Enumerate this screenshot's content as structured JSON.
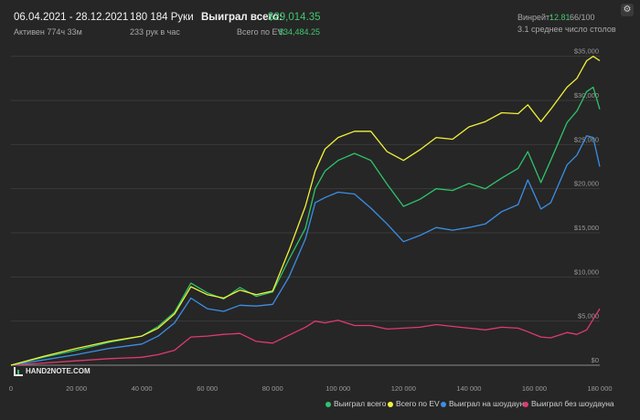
{
  "header": {
    "date_range": "06.04.2021 - 28.12.2021",
    "active_time": "Активен 774ч 33м",
    "hands": "180 184 Руки",
    "hands_per_hour": "233 рук в час",
    "won_label": "Выиграл всего:",
    "won_value": "$29,014.35",
    "ev_label": "Всего по EV:",
    "ev_value": "$34,484.25",
    "winrate_label": "Винрейт:",
    "winrate_value": "12.81",
    "winrate_extra": "66/100",
    "tables_avg": "3.1 среднее число столов",
    "settings_icon": "gear-icon"
  },
  "logo": {
    "text": "HAND2NOTE.COM",
    "icon": "hand2note-logo"
  },
  "colors": {
    "won_total": "#2ec46a",
    "ev_total": "#f2f23a",
    "showdown": "#3b8fe6",
    "non_showdown": "#e03a6e",
    "accent": "#3ec76f"
  },
  "chart_data": {
    "type": "line",
    "title": "",
    "xlabel": "",
    "ylabel": "",
    "xlim": [
      0,
      180000
    ],
    "ylim": [
      0,
      36000
    ],
    "x_ticks": [
      0,
      20000,
      40000,
      60000,
      80000,
      100000,
      120000,
      140000,
      160000,
      180000
    ],
    "x_tick_labels": [
      "0",
      "20 000",
      "40 000",
      "60 000",
      "80 000",
      "100 000",
      "120 000",
      "140 000",
      "160 000",
      "180 000"
    ],
    "y_ticks": [
      0,
      5000,
      10000,
      15000,
      20000,
      25000,
      30000,
      35000
    ],
    "y_tick_labels": [
      "$0",
      "$5,000",
      "$10,000",
      "$15,000",
      "$20,000",
      "$25,000",
      "$30,000",
      "$35,000"
    ],
    "grid": "horizontal",
    "legend": "bottom-right",
    "x": [
      0,
      10000,
      20000,
      30000,
      40000,
      45000,
      50000,
      55000,
      60000,
      65000,
      70000,
      75000,
      80000,
      85000,
      90000,
      93000,
      96000,
      100000,
      105000,
      110000,
      115000,
      120000,
      125000,
      130000,
      135000,
      140000,
      145000,
      150000,
      155000,
      158000,
      162000,
      165000,
      170000,
      173000,
      176000,
      178000,
      180000
    ],
    "series": [
      {
        "name": "Выиграл всего",
        "values": [
          0,
          900,
          1700,
          2600,
          3300,
          4400,
          6000,
          9300,
          8200,
          7500,
          8800,
          7800,
          8300,
          12000,
          15500,
          20000,
          22000,
          23200,
          24000,
          23200,
          20500,
          18000,
          18800,
          20000,
          19800,
          20600,
          20000,
          21200,
          22300,
          24200,
          20700,
          23200,
          27500,
          28800,
          31000,
          31500,
          29000
        ]
      },
      {
        "name": "Всего по EV",
        "values": [
          0,
          1000,
          1900,
          2700,
          3300,
          4200,
          5800,
          8900,
          8000,
          7600,
          8500,
          8000,
          8400,
          13000,
          18000,
          22000,
          24500,
          25800,
          26500,
          26500,
          24200,
          23200,
          24400,
          25800,
          25600,
          27000,
          27600,
          28600,
          28500,
          29500,
          27600,
          29000,
          31500,
          32500,
          34500,
          35000,
          34500
        ]
      },
      {
        "name": "Выиграл на шоудауне",
        "values": [
          0,
          600,
          1200,
          1900,
          2400,
          3300,
          4800,
          7600,
          6400,
          6100,
          6800,
          6700,
          6900,
          10000,
          14300,
          18400,
          19000,
          19600,
          19400,
          17800,
          16000,
          14000,
          14700,
          15600,
          15300,
          15600,
          16000,
          17400,
          18200,
          21000,
          17700,
          18400,
          22700,
          23800,
          26000,
          25800,
          22500
        ]
      },
      {
        "name": "Выиграл без шоудауна",
        "values": [
          0,
          250,
          500,
          750,
          900,
          1200,
          1700,
          3200,
          3300,
          3500,
          3600,
          2700,
          2500,
          3400,
          4300,
          5000,
          4800,
          5100,
          4500,
          4500,
          4100,
          4200,
          4300,
          4600,
          4400,
          4200,
          4000,
          4300,
          4200,
          3800,
          3200,
          3100,
          3700,
          3500,
          4000,
          5200,
          6400
        ]
      }
    ]
  }
}
